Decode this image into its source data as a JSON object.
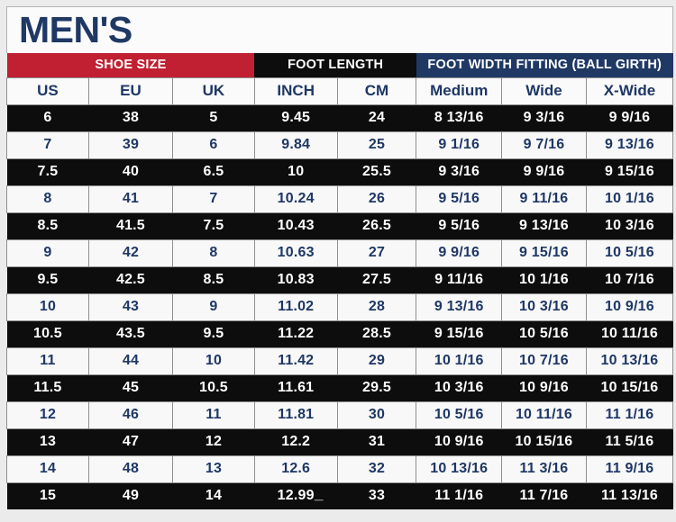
{
  "title": "MEN'S",
  "stray_mark": "_",
  "table": {
    "group_headers": [
      {
        "label": "SHOE SIZE",
        "span": 3,
        "color": "#c02031"
      },
      {
        "label": "FOOT LENGTH",
        "span": 2,
        "color": "#0d0d0d"
      },
      {
        "label": "FOOT WIDTH FITTING (BALL GIRTH)",
        "span": 3,
        "color": "#1f3864"
      }
    ],
    "columns": [
      "US",
      "EU",
      "UK",
      "INCH",
      "CM",
      "Medium",
      "Wide",
      "X-Wide"
    ],
    "rows": [
      [
        "6",
        "38",
        "5",
        "9.45",
        "24",
        "8 13/16",
        "9 3/16",
        "9 9/16"
      ],
      [
        "7",
        "39",
        "6",
        "9.84",
        "25",
        "9 1/16",
        "9 7/16",
        "9 13/16"
      ],
      [
        "7.5",
        "40",
        "6.5",
        "10",
        "25.5",
        "9 3/16",
        "9 9/16",
        "9 15/16"
      ],
      [
        "8",
        "41",
        "7",
        "10.24",
        "26",
        "9 5/16",
        "9 11/16",
        "10 1/16"
      ],
      [
        "8.5",
        "41.5",
        "7.5",
        "10.43",
        "26.5",
        "9 5/16",
        "9 13/16",
        "10 3/16"
      ],
      [
        "9",
        "42",
        "8",
        "10.63",
        "27",
        "9 9/16",
        "9 15/16",
        "10 5/16"
      ],
      [
        "9.5",
        "42.5",
        "8.5",
        "10.83",
        "27.5",
        "9 11/16",
        "10 1/16",
        "10 7/16"
      ],
      [
        "10",
        "43",
        "9",
        "11.02",
        "28",
        "9 13/16",
        "10 3/16",
        "10 9/16"
      ],
      [
        "10.5",
        "43.5",
        "9.5",
        "11.22",
        "28.5",
        "9 15/16",
        "10 5/16",
        "10 11/16"
      ],
      [
        "11",
        "44",
        "10",
        "11.42",
        "29",
        "10 1/16",
        "10 7/16",
        "10 13/16"
      ],
      [
        "11.5",
        "45",
        "10.5",
        "11.61",
        "29.5",
        "10 3/16",
        "10 9/16",
        "10 15/16"
      ],
      [
        "12",
        "46",
        "11",
        "11.81",
        "30",
        "10 5/16",
        "10 11/16",
        "11 1/16"
      ],
      [
        "13",
        "47",
        "12",
        "12.2",
        "31",
        "10 9/16",
        "10 15/16",
        "11 5/16"
      ],
      [
        "14",
        "48",
        "13",
        "12.6",
        "32",
        "10 13/16",
        "11 3/16",
        "11 9/16"
      ],
      [
        "15",
        "49",
        "14",
        "12.99",
        "33",
        "11 1/16",
        "11 7/16",
        "11 13/16"
      ]
    ]
  },
  "colors": {
    "accent_red": "#c02031",
    "accent_navy": "#1f3864",
    "row_black": "#0d0d0d",
    "row_white": "#f8f8f8",
    "text_navy": "#1e3765",
    "page_bg": "#ebebeb",
    "border_gray": "#8f8f8f"
  }
}
